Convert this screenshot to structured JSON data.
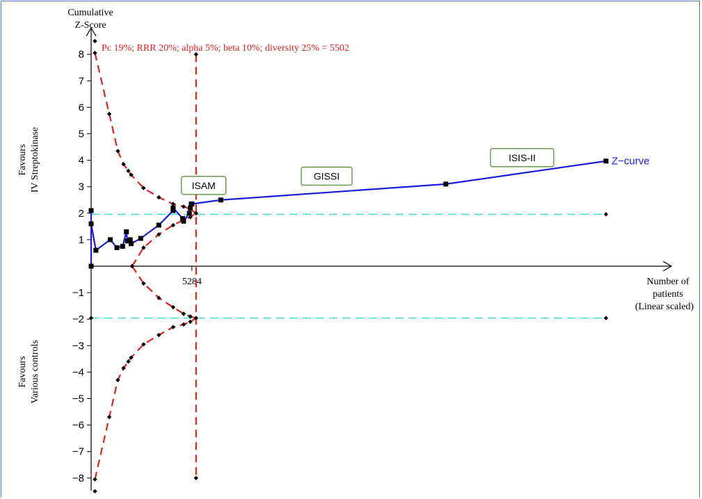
{
  "chart_data": {
    "type": "line",
    "ylabel_line1": "Cumulative",
    "ylabel_line2": "Z-Score",
    "xlabel_line1": "Number of",
    "xlabel_line2": "patients",
    "xlabel_line3": "(Linear scaled)",
    "boundary_label": "Pc 19%; RRR 20%; alpha 5%; beta 10%; diversity 25% = 5502",
    "favours_top_line1": "Favours",
    "favours_top_line2": "IV Streptokinase",
    "favours_bottom_line1": "Favours",
    "favours_bottom_line2": "Various controls",
    "x_tick_label": "5284",
    "x_tick_value": 5284,
    "required_information_size": 5502,
    "x_max": 27000,
    "ylim": [
      -8.5,
      8.5
    ],
    "y_ticks": [
      {
        "value": 8,
        "label": "8"
      },
      {
        "value": 7,
        "label": "7"
      },
      {
        "value": 6,
        "label": "6"
      },
      {
        "value": 5,
        "label": "5"
      },
      {
        "value": 4,
        "label": "4"
      },
      {
        "value": 3,
        "label": "3"
      },
      {
        "value": 2,
        "label": "2"
      },
      {
        "value": 1,
        "label": "1"
      },
      {
        "value": -1,
        "label": "−1"
      },
      {
        "value": -2,
        "label": "−2"
      },
      {
        "value": -3,
        "label": "−3"
      },
      {
        "value": -4,
        "label": "−4"
      },
      {
        "value": -5,
        "label": "−5"
      },
      {
        "value": -6,
        "label": "−6"
      },
      {
        "value": -7,
        "label": "−7"
      },
      {
        "value": -8,
        "label": "−8"
      }
    ],
    "conventional_boundary": 1.96,
    "series": [
      {
        "name": "Z−curve",
        "color": "#1a1adb",
        "points": [
          [
            0,
            0
          ],
          [
            0,
            2.1
          ],
          [
            0,
            1.6
          ],
          [
            250,
            0.6
          ],
          [
            1000,
            1.0
          ],
          [
            1350,
            0.7
          ],
          [
            1650,
            0.75
          ],
          [
            1850,
            1.3
          ],
          [
            1900,
            0.95
          ],
          [
            2050,
            1.0
          ],
          [
            2100,
            0.85
          ],
          [
            2600,
            1.05
          ],
          [
            3550,
            1.55
          ],
          [
            4300,
            2.1
          ],
          [
            4300,
            2.2
          ],
          [
            4800,
            1.8
          ],
          [
            4850,
            1.7
          ],
          [
            5150,
            2.0
          ],
          [
            5200,
            2.2
          ],
          [
            5250,
            2.35
          ],
          [
            5284,
            2.35
          ],
          [
            6800,
            2.5
          ],
          [
            18600,
            3.1
          ],
          [
            27000,
            3.97
          ]
        ]
      },
      {
        "color": "#e02020",
        "points": [
          [
            200,
            8.05
          ],
          [
            950,
            5.75
          ],
          [
            1400,
            4.35
          ],
          [
            1700,
            3.85
          ],
          [
            1950,
            3.6
          ],
          [
            2100,
            3.45
          ],
          [
            2750,
            2.95
          ],
          [
            3550,
            2.6
          ],
          [
            4300,
            2.35
          ],
          [
            4850,
            2.25
          ],
          [
            5200,
            2.15
          ],
          [
            5502,
            2.0
          ]
        ]
      },
      {
        "color": "#e02020",
        "points": [
          [
            200,
            -8.05
          ],
          [
            950,
            -5.7
          ],
          [
            1400,
            -4.3
          ],
          [
            1700,
            -3.85
          ],
          [
            1950,
            -3.6
          ],
          [
            2100,
            -3.45
          ],
          [
            2750,
            -2.95
          ],
          [
            3550,
            -2.6
          ],
          [
            4300,
            -2.3
          ],
          [
            4850,
            -2.2
          ],
          [
            5200,
            -2.1
          ],
          [
            5502,
            -1.96
          ]
        ]
      },
      {
        "color": "#e02020",
        "points": [
          [
            2150,
            0
          ],
          [
            2750,
            0.7
          ],
          [
            3550,
            1.2
          ],
          [
            4300,
            1.55
          ],
          [
            4850,
            1.75
          ],
          [
            5200,
            1.85
          ],
          [
            5502,
            2.0
          ]
        ]
      },
      {
        "color": "#e02020",
        "points": [
          [
            2150,
            0
          ],
          [
            2750,
            -0.65
          ],
          [
            3550,
            -1.2
          ],
          [
            4300,
            -1.55
          ],
          [
            4850,
            -1.8
          ],
          [
            5200,
            -1.9
          ],
          [
            5502,
            -1.96
          ]
        ]
      }
    ],
    "extra_markers": [
      [
        200,
        8.5
      ],
      [
        200,
        -8.5
      ],
      [
        5502,
        8.0
      ],
      [
        5502,
        -8.0
      ],
      [
        0,
        -1.96
      ],
      [
        27000,
        1.96
      ],
      [
        27000,
        -1.96
      ]
    ],
    "annotations": [
      {
        "label": "ISAM",
        "x": 5900,
        "y": 3.05
      },
      {
        "label": "GISSI",
        "x": 12350,
        "y": 3.4
      },
      {
        "label": "ISIS-II",
        "x": 22600,
        "y": 4.1
      }
    ],
    "colors": {
      "z_curve": "#1a1adb",
      "boundary": "#e02020",
      "conventional": "#40e0d0",
      "annotation_border": "#5a8f3c",
      "frame": "#4a78c2"
    }
  }
}
